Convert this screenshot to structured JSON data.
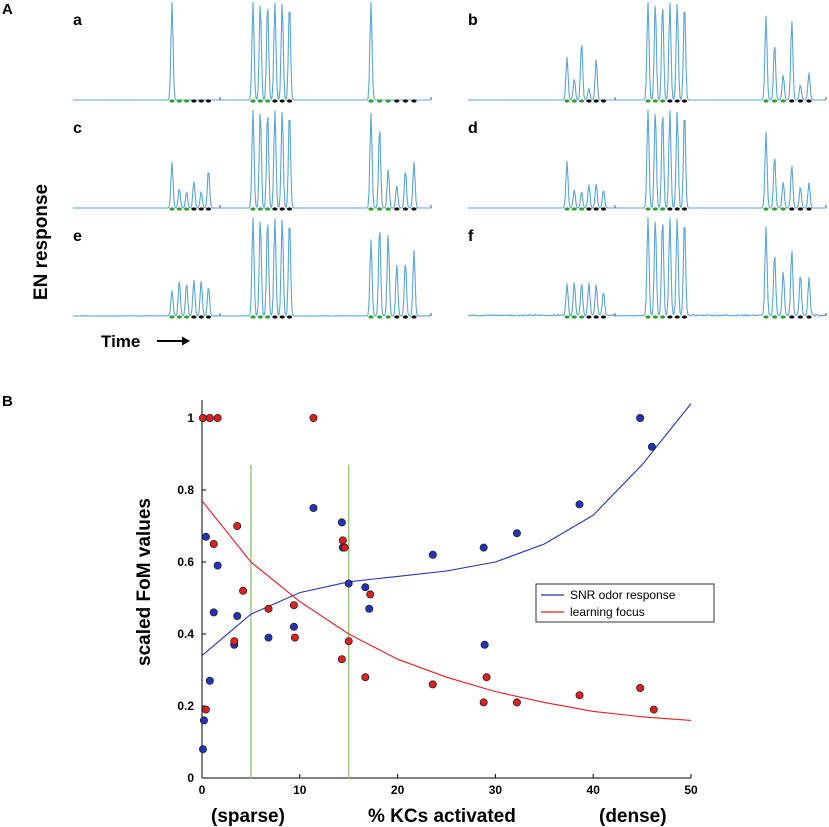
{
  "panel_a": {
    "label": "A",
    "ylabel": "EN response",
    "xlabel": "Time",
    "trace_color": "#5ba5d6",
    "subpanels": [
      {
        "letter": "a",
        "peaks1": [
          1.0,
          0,
          0,
          0,
          0,
          0
        ],
        "peaks2": [
          1,
          1,
          1,
          1,
          1,
          1
        ],
        "peaks3": [
          1.0,
          0,
          0,
          0,
          0,
          0
        ],
        "noise_level": 0.0
      },
      {
        "letter": "b",
        "peaks1": [
          0.44,
          0.22,
          0.6,
          0.12,
          0.42,
          0
        ],
        "peaks2": [
          1,
          1,
          1,
          1,
          1,
          1
        ],
        "peaks3": [
          0.86,
          0.58,
          0.26,
          0.82,
          0.16,
          0.28
        ],
        "noise_level": 0.0
      },
      {
        "letter": "c",
        "peaks1": [
          0.47,
          0.2,
          0.17,
          0.27,
          0.17,
          0.4
        ],
        "peaks2": [
          1,
          1,
          1,
          1,
          1,
          1
        ],
        "peaks3": [
          0.97,
          0.84,
          0.4,
          0.23,
          0.39,
          0.47
        ],
        "noise_level": 0.0
      },
      {
        "letter": "d",
        "peaks1": [
          0.48,
          0.19,
          0.17,
          0.24,
          0.25,
          0.19
        ],
        "peaks2": [
          1,
          1,
          1,
          1,
          1,
          1
        ],
        "peaks3": [
          0.78,
          0.54,
          0.27,
          0.44,
          0.22,
          0.26
        ],
        "noise_level": 0.0
      },
      {
        "letter": "e",
        "peaks1": [
          0.26,
          0.36,
          0.34,
          0.37,
          0.36,
          0.31
        ],
        "peaks2": [
          1,
          1,
          1,
          1,
          1,
          1
        ],
        "peaks3": [
          0.78,
          0.92,
          0.84,
          0.53,
          0.56,
          0.67
        ],
        "noise_level": 0.02
      },
      {
        "letter": "f",
        "peaks1": [
          0.32,
          0.34,
          0.34,
          0.33,
          0.32,
          0.25
        ],
        "peaks2": [
          1,
          1,
          1,
          1,
          1,
          1
        ],
        "peaks3": [
          0.9,
          0.64,
          0.45,
          0.67,
          0.42,
          0.39
        ],
        "noise_level": 0.12
      }
    ],
    "stim_dot_colors": [
      "#2ca02c",
      "#2ca02c",
      "#2ca02c",
      "#111111",
      "#111111",
      "#111111"
    ]
  },
  "panel_b": {
    "label": "B",
    "chart_data": {
      "type": "scatter",
      "title": "",
      "xlabel": "% KCs activated",
      "xlabel_left": "(sparse)",
      "xlabel_right": "(dense)",
      "ylabel": "scaled FoM values",
      "xlim": [
        0,
        50
      ],
      "ylim": [
        0,
        1.05
      ],
      "xticks": [
        0,
        10,
        20,
        30,
        40,
        50
      ],
      "yticks": [
        0,
        0.2,
        0.4,
        0.6,
        0.8,
        1
      ],
      "ytick_labels": [
        "0",
        "0.2",
        "0.4",
        "0.6",
        "0.8",
        "1"
      ],
      "vlines": [
        5,
        15
      ],
      "vline_color": "#9acd7a",
      "series": [
        {
          "name": "SNR odor response",
          "color": "#2233bb",
          "fit": [
            [
              0,
              0.34
            ],
            [
              5,
              0.455
            ],
            [
              10,
              0.515
            ],
            [
              15,
              0.545
            ],
            [
              20,
              0.56
            ],
            [
              25,
              0.575
            ],
            [
              30,
              0.6
            ],
            [
              35,
              0.65
            ],
            [
              40,
              0.73
            ],
            [
              45,
              0.87
            ],
            [
              50,
              1.04
            ]
          ],
          "x": [
            0.1,
            0.2,
            0.4,
            0.8,
            1.2,
            1.6,
            3.3,
            3.6,
            6.8,
            9.4,
            11.4,
            14.3,
            14.4,
            15.0,
            16.7,
            17.1,
            23.6,
            28.8,
            28.9,
            32.2,
            38.6,
            44.8,
            46.0
          ],
          "y": [
            0.08,
            0.16,
            0.67,
            0.27,
            0.46,
            0.59,
            0.37,
            0.45,
            0.39,
            0.42,
            0.75,
            0.71,
            0.64,
            0.54,
            0.53,
            0.47,
            0.62,
            0.64,
            0.37,
            0.68,
            0.76,
            1.0,
            0.92
          ]
        },
        {
          "name": "learning focus",
          "color": "#e02020",
          "fit": [
            [
              0,
              0.77
            ],
            [
              5,
              0.6
            ],
            [
              10,
              0.49
            ],
            [
              15,
              0.4
            ],
            [
              20,
              0.33
            ],
            [
              25,
              0.28
            ],
            [
              30,
              0.24
            ],
            [
              35,
              0.21
            ],
            [
              40,
              0.185
            ],
            [
              45,
              0.17
            ],
            [
              50,
              0.16
            ]
          ],
          "x": [
            0.1,
            0.4,
            0.8,
            1.2,
            1.6,
            3.3,
            3.6,
            4.2,
            6.8,
            9.4,
            9.5,
            11.4,
            14.3,
            14.4,
            14.6,
            15.0,
            16.7,
            17.2,
            23.6,
            28.8,
            29.1,
            32.2,
            38.6,
            44.8,
            46.2
          ],
          "y": [
            1.0,
            0.19,
            1.0,
            0.65,
            1.0,
            0.38,
            0.7,
            0.52,
            0.47,
            0.48,
            0.39,
            1.0,
            0.33,
            0.66,
            0.64,
            0.38,
            0.28,
            0.51,
            0.26,
            0.21,
            0.28,
            0.21,
            0.23,
            0.25,
            0.19
          ]
        }
      ],
      "legend_position": "right-middle"
    }
  }
}
